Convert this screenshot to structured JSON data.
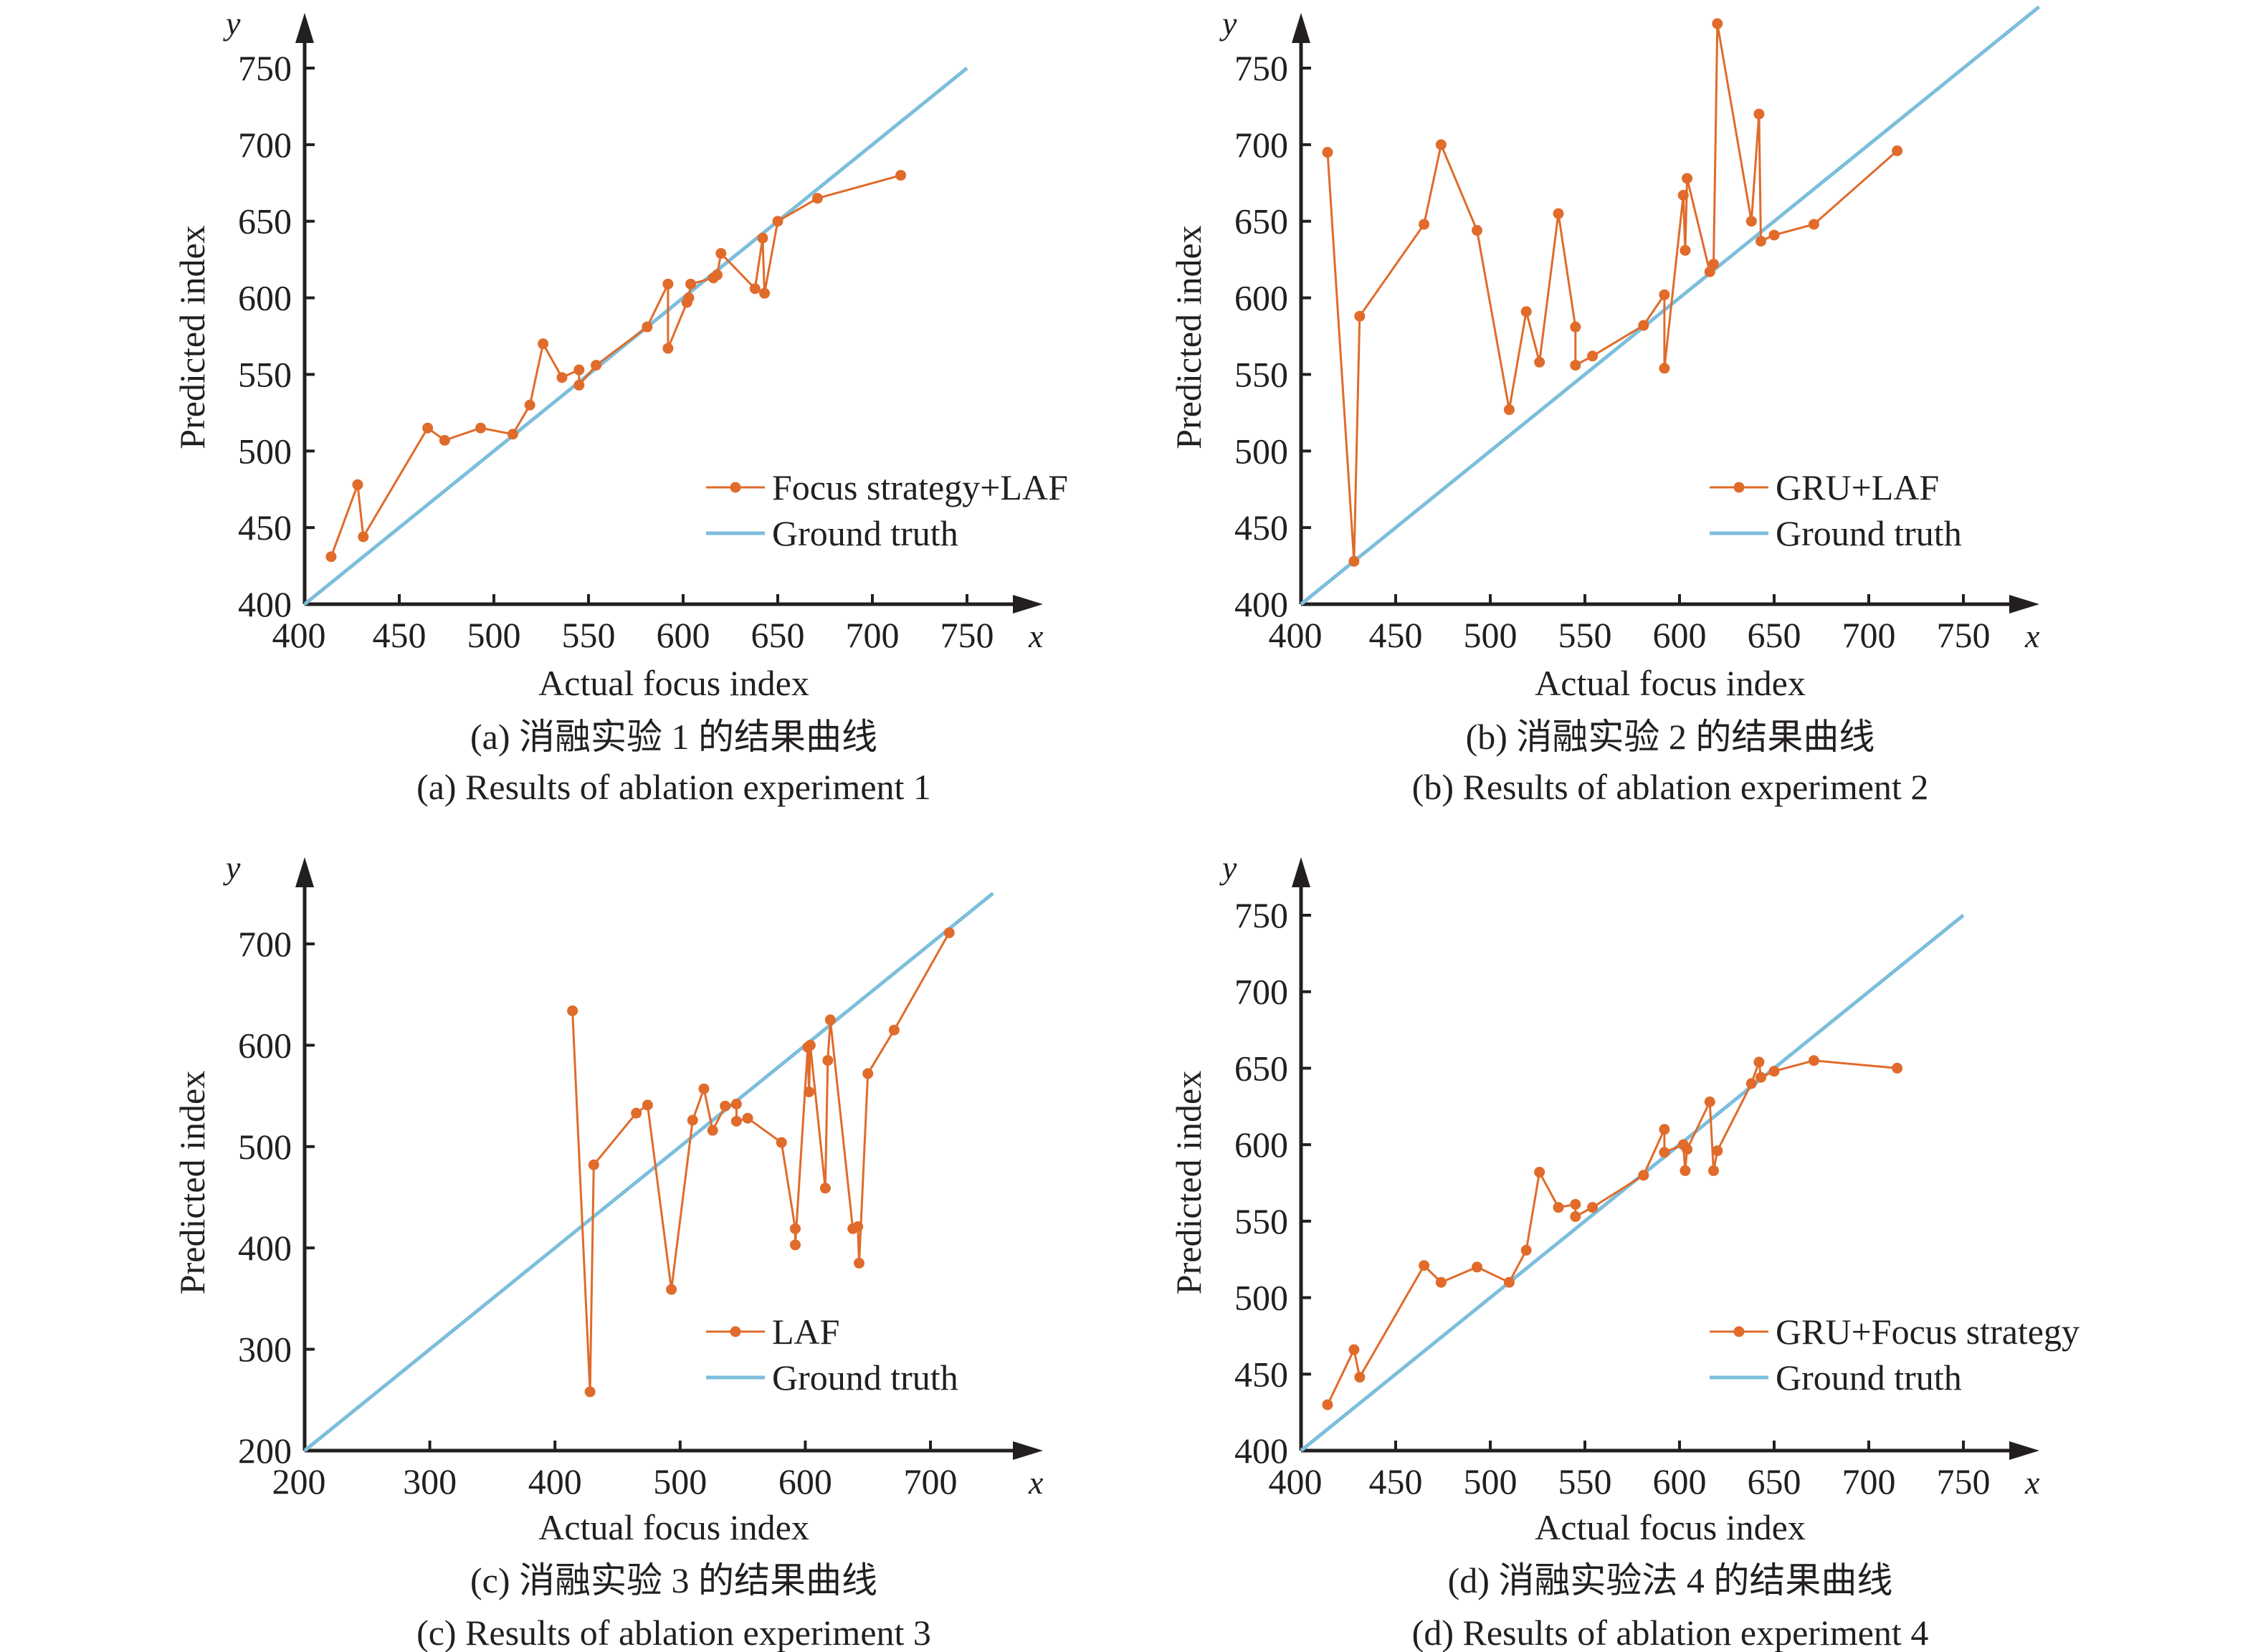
{
  "colors": {
    "prediction": "#E06B2A",
    "ground_truth": "#7DBEDC",
    "axis": "#231f20"
  },
  "chart_data": [
    {
      "id": "a",
      "type": "line",
      "xlabel": "Actual focus index",
      "ylabel": "Predicted index",
      "x_var": "x",
      "y_var": "y",
      "xlim": [
        400,
        750
      ],
      "ylim": [
        400,
        750
      ],
      "x_ticks": [
        400,
        450,
        500,
        550,
        600,
        650,
        700,
        750
      ],
      "y_ticks": [
        400,
        450,
        500,
        550,
        600,
        650,
        700,
        750
      ],
      "legend": [
        "Focus strategy+LAF",
        "Ground truth"
      ],
      "legend_position": "bottom-right",
      "caption_cn": "(a) 消融实验 1 的结果曲线",
      "caption_en": "(a) Results of ablation experiment 1",
      "series": [
        {
          "name": "Focus strategy+LAF",
          "x": [
            414,
            428,
            431,
            465,
            474,
            493,
            510,
            519,
            526,
            536,
            545,
            545,
            554,
            581,
            592,
            592,
            602,
            603,
            604,
            616,
            618,
            620,
            638,
            642,
            643,
            650,
            671,
            715
          ],
          "y": [
            431,
            478,
            444,
            515,
            507,
            515,
            511,
            530,
            570,
            548,
            553,
            543,
            556,
            581,
            609,
            567,
            597,
            600,
            609,
            613,
            615,
            629,
            606,
            639,
            603,
            650,
            665,
            680
          ]
        },
        {
          "name": "Ground truth",
          "x": [
            400,
            750
          ],
          "y": [
            400,
            750
          ]
        }
      ]
    },
    {
      "id": "b",
      "type": "line",
      "xlabel": "Actual focus index",
      "ylabel": "Predicted index",
      "x_var": "x",
      "y_var": "y",
      "xlim": [
        400,
        790
      ],
      "ylim": [
        400,
        790
      ],
      "x_ticks": [
        400,
        450,
        500,
        550,
        600,
        650,
        700,
        750
      ],
      "y_ticks": [
        400,
        450,
        500,
        550,
        600,
        650,
        700,
        750
      ],
      "legend": [
        "GRU+LAF",
        "Ground truth"
      ],
      "legend_position": "bottom-right",
      "caption_cn": "(b) 消融实验 2 的结果曲线",
      "caption_en": "(b) Results of ablation experiment 2",
      "series": [
        {
          "name": "GRU+LAF",
          "x": [
            414,
            428,
            431,
            465,
            474,
            493,
            510,
            519,
            526,
            536,
            545,
            545,
            554,
            581,
            592,
            592,
            602,
            603,
            604,
            616,
            618,
            620,
            638,
            642,
            643,
            650,
            671,
            715
          ],
          "y": [
            695,
            428,
            588,
            648,
            700,
            644,
            527,
            591,
            558,
            655,
            581,
            556,
            562,
            582,
            602,
            554,
            667,
            631,
            678,
            617,
            622,
            779,
            650,
            720,
            637,
            641,
            648,
            696
          ]
        },
        {
          "name": "Ground truth",
          "x": [
            400,
            790
          ],
          "y": [
            400,
            790
          ]
        }
      ]
    },
    {
      "id": "c",
      "type": "line",
      "xlabel": "Actual focus index",
      "ylabel": "Predicted index",
      "x_var": "x",
      "y_var": "y",
      "xlim": [
        200,
        750
      ],
      "ylim": [
        200,
        750
      ],
      "x_ticks": [
        200,
        300,
        400,
        500,
        600,
        700
      ],
      "y_ticks": [
        200,
        300,
        400,
        500,
        600,
        700
      ],
      "legend": [
        "LAF",
        "Ground truth"
      ],
      "legend_position": "bottom-right",
      "caption_cn": "(c) 消融实验 3 的结果曲线",
      "caption_en": "(c) Results of ablation experiment 3",
      "series": [
        {
          "name": "LAF",
          "x": [
            414,
            428,
            431,
            465,
            474,
            493,
            510,
            519,
            526,
            536,
            545,
            545,
            554,
            581,
            592,
            592,
            602,
            603,
            604,
            616,
            618,
            620,
            638,
            642,
            643,
            650,
            671,
            715
          ],
          "y": [
            634,
            258,
            482,
            533,
            541,
            359,
            526,
            557,
            516,
            540,
            542,
            525,
            528,
            504,
            419,
            403,
            598,
            554,
            600,
            459,
            585,
            625,
            419,
            421,
            385,
            572,
            615,
            711
          ]
        },
        {
          "name": "Ground truth",
          "x": [
            200,
            750
          ],
          "y": [
            200,
            750
          ]
        }
      ]
    },
    {
      "id": "d",
      "type": "line",
      "xlabel": "Actual focus index",
      "ylabel": "Predicted index",
      "x_var": "x",
      "y_var": "y",
      "xlim": [
        400,
        750
      ],
      "ylim": [
        400,
        750
      ],
      "x_ticks": [
        400,
        450,
        500,
        550,
        600,
        650,
        700,
        750
      ],
      "y_ticks": [
        400,
        450,
        500,
        550,
        600,
        650,
        700,
        750
      ],
      "legend": [
        "GRU+Focus strategy",
        "Ground truth"
      ],
      "legend_position": "bottom-right",
      "caption_cn": "(d) 消融实验法 4 的结果曲线",
      "caption_en": "(d) Results of ablation experiment 4",
      "series": [
        {
          "name": "GRU+Focus strategy",
          "x": [
            414,
            428,
            431,
            465,
            474,
            493,
            510,
            519,
            526,
            536,
            545,
            545,
            554,
            581,
            592,
            592,
            602,
            603,
            604,
            616,
            618,
            620,
            638,
            642,
            643,
            650,
            671,
            715
          ],
          "y": [
            430,
            466,
            448,
            521,
            510,
            520,
            510,
            531,
            582,
            559,
            561,
            553,
            559,
            580,
            610,
            595,
            600,
            583,
            597,
            628,
            583,
            596,
            640,
            654,
            644,
            648,
            655,
            650
          ]
        },
        {
          "name": "Ground truth",
          "x": [
            400,
            750
          ],
          "y": [
            400,
            750
          ]
        }
      ]
    }
  ]
}
